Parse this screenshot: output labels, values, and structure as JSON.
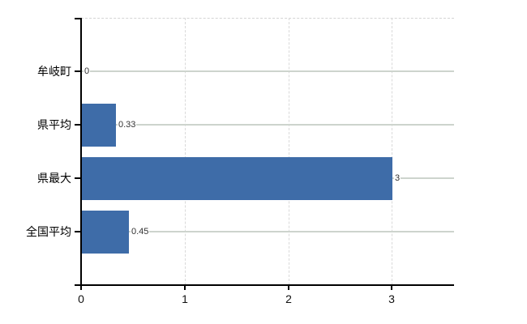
{
  "chart_data": {
    "type": "bar",
    "orientation": "horizontal",
    "title": "",
    "xlabel": "",
    "ylabel": "",
    "legend": "none",
    "grid": "on",
    "categories": [
      "牟岐町",
      "県平均",
      "県最大",
      "全国平均"
    ],
    "values": [
      0,
      0.33,
      3,
      0.45
    ],
    "value_labels": [
      "0",
      "0.33",
      "3",
      "0.45"
    ],
    "x_ticks": [
      "0",
      "1",
      "2",
      "3"
    ],
    "x_tick_values": [
      0,
      1,
      2,
      3
    ],
    "xlim": [
      0,
      3.6
    ],
    "colors": {
      "bar": "#3e6ca8",
      "h_gridline": "#cdd4cd",
      "v_gridline": "#d9d9d9",
      "top_border": "#d4d4d4",
      "axis": "#000000",
      "category_label": "#000000",
      "tick_label": "#111111",
      "value_label": "#333333",
      "background": "#ffffff"
    }
  }
}
